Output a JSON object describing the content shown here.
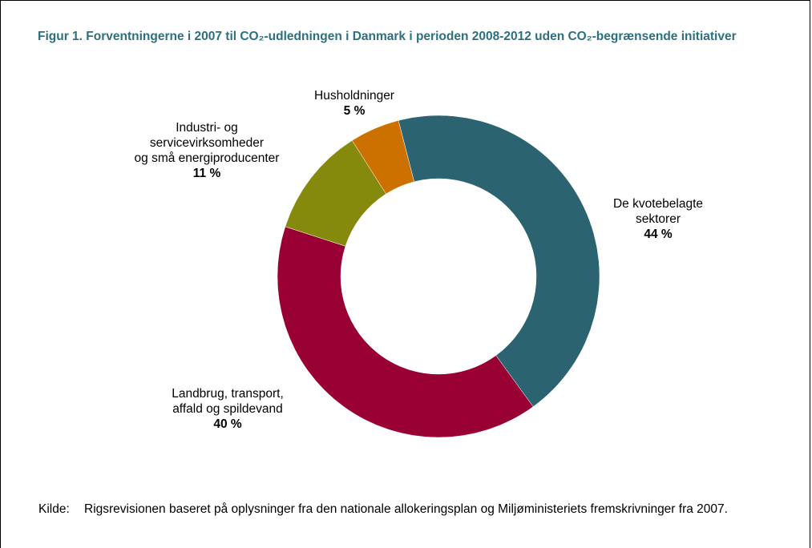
{
  "chart_data": {
    "type": "donut",
    "title": "Figur 1. Forventningerne i 2007 til CO₂-udledningen i Danmark i perioden 2008-2012 uden CO₂-begrænsende initiativer",
    "categories": [
      "De kvotebelagte\nsektorer",
      "Landbrug, transport,\naffald og spildevand",
      "Industri- og\nservicevirksomheder\nog små energiproducenter",
      "Husholdninger"
    ],
    "values": [
      44,
      40,
      11,
      5
    ],
    "value_labels": [
      "44 %",
      "40 %",
      "11 %",
      "5 %"
    ],
    "colors": [
      "#2b6470",
      "#990033",
      "#858a0d",
      "#cc7000"
    ],
    "source_label": "Kilde:",
    "source": "Rigsrevisionen baseret på oplysninger fra den nationale allokeringsplan og Miljøministeriets fremskrivninger fra 2007."
  }
}
